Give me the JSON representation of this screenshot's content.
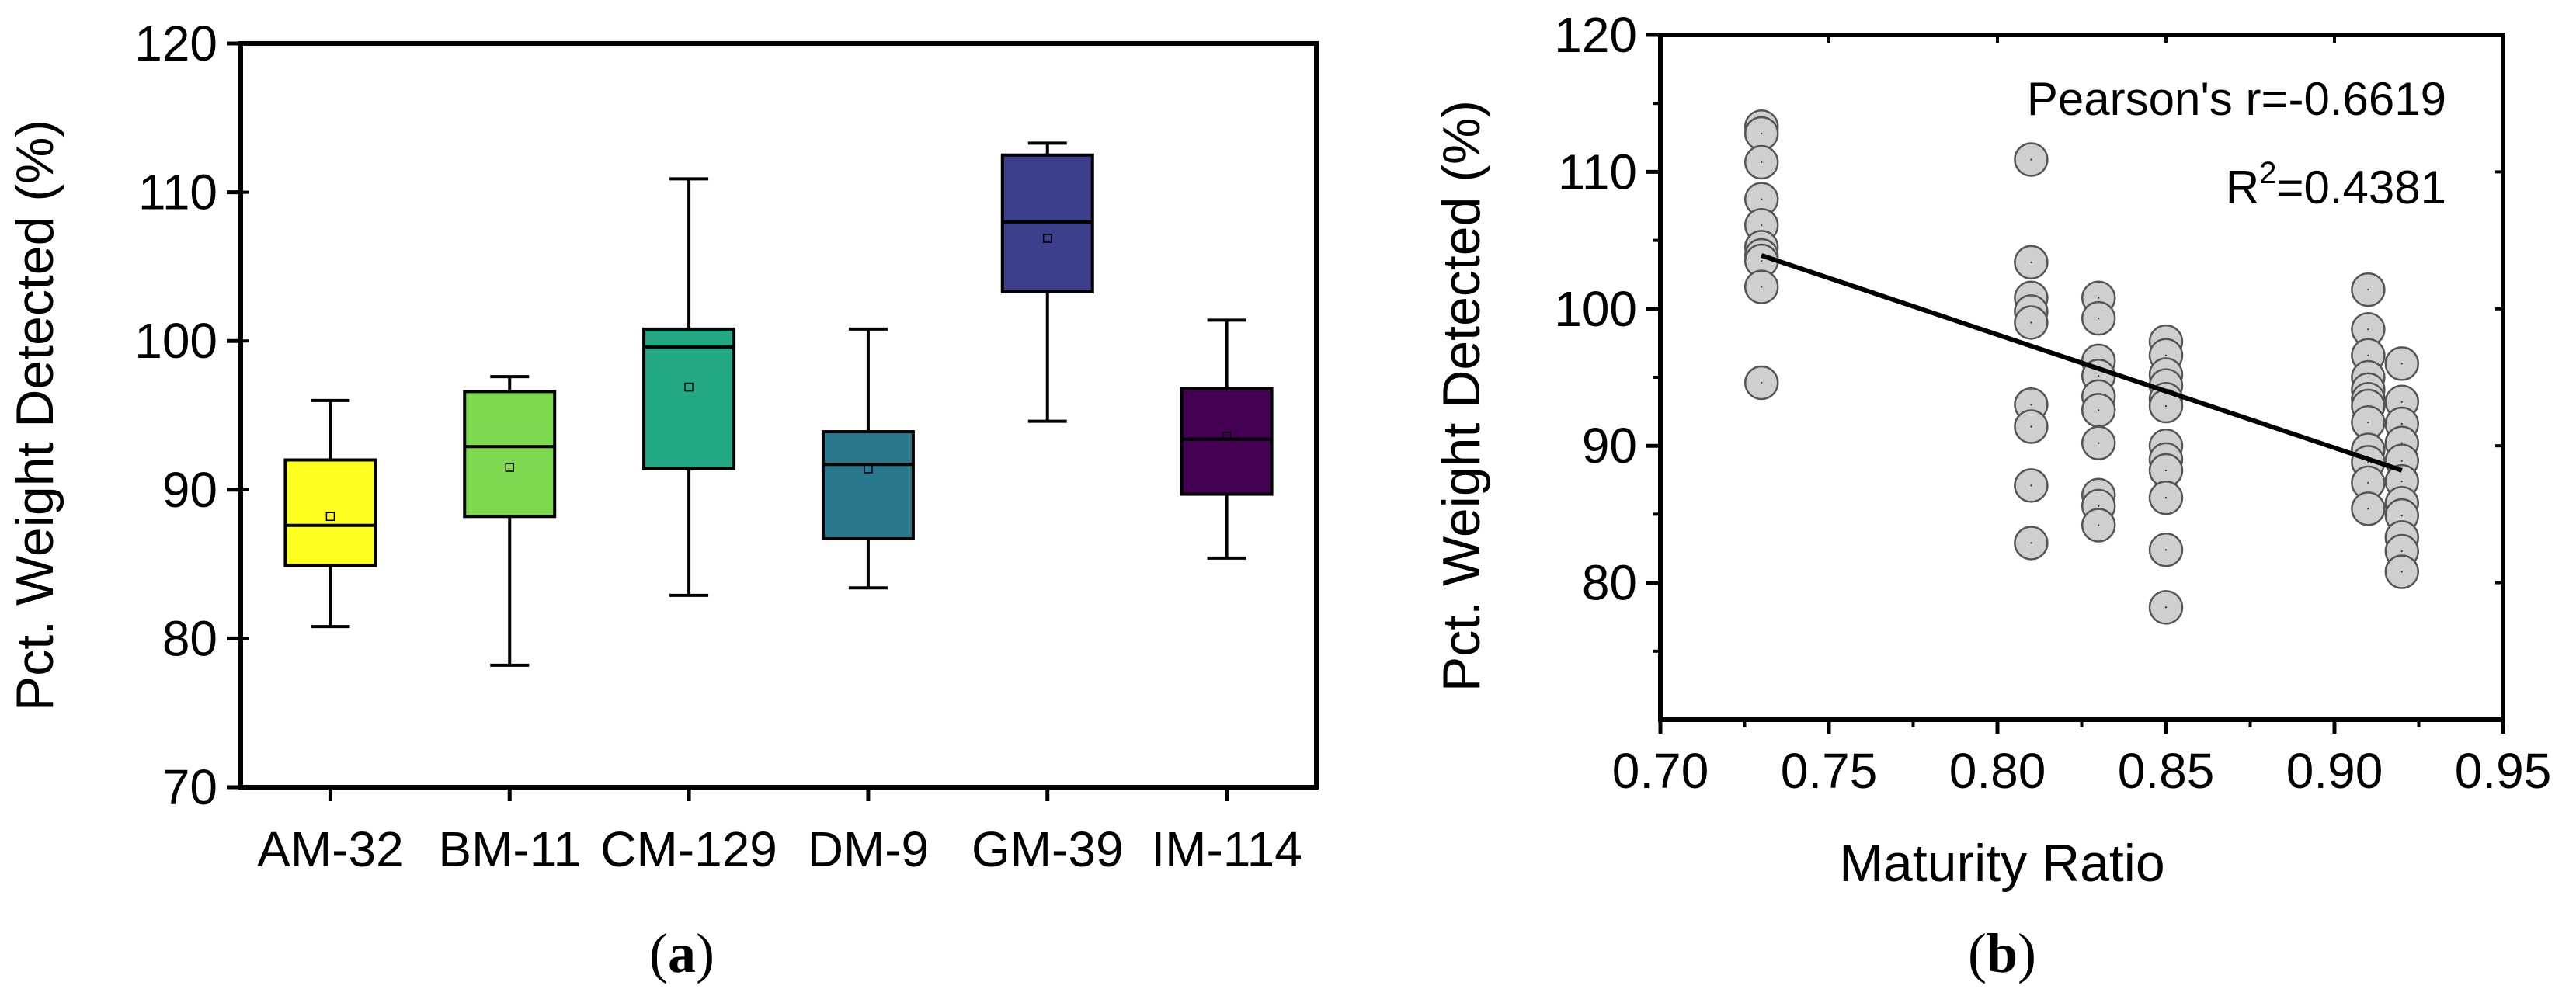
{
  "chart_data": [
    {
      "id": "a",
      "type": "box",
      "caption_open": "(",
      "caption_letter": "a",
      "caption_close": ")",
      "xlabel": "",
      "ylabel": "Pct. Weight Detected (%)",
      "ylim": [
        70,
        120
      ],
      "yticks": [
        70,
        80,
        90,
        100,
        110,
        120
      ],
      "categories": [
        "AM-32",
        "BM-11",
        "CM-129",
        "DM-9",
        "GM-39",
        "IM-114"
      ],
      "colors": [
        "#ffff1f",
        "#7ed94f",
        "#22a884",
        "#2a788e",
        "#3b3f8c",
        "#440154"
      ],
      "boxes": [
        {
          "min": 80.8,
          "q1": 84.9,
          "median": 87.6,
          "q3": 92.0,
          "max": 96.0,
          "mean": 88.2
        },
        {
          "min": 78.2,
          "q1": 88.2,
          "median": 92.9,
          "q3": 96.6,
          "max": 97.6,
          "mean": 91.5
        },
        {
          "min": 82.9,
          "q1": 91.4,
          "median": 99.6,
          "q3": 100.8,
          "max": 110.9,
          "mean": 96.9
        },
        {
          "min": 83.4,
          "q1": 86.7,
          "median": 91.7,
          "q3": 93.9,
          "max": 100.8,
          "mean": 91.4
        },
        {
          "min": 94.6,
          "q1": 103.3,
          "median": 108.0,
          "q3": 112.5,
          "max": 113.3,
          "mean": 106.9
        },
        {
          "min": 85.4,
          "q1": 89.7,
          "median": 93.4,
          "q3": 96.8,
          "max": 101.4,
          "mean": 93.6
        }
      ]
    },
    {
      "id": "b",
      "type": "scatter",
      "caption_open": "(",
      "caption_letter": "b",
      "caption_close": ")",
      "xlabel": "Maturity Ratio",
      "ylabel": "Pct. Weight Detected (%)",
      "xlim": [
        0.7,
        0.95
      ],
      "ylim": [
        70,
        120
      ],
      "xticks": [
        0.7,
        0.75,
        0.8,
        0.85,
        0.9,
        0.95
      ],
      "xtick_labels": [
        "0.70",
        "0.75",
        "0.80",
        "0.85",
        "0.90",
        "0.95"
      ],
      "yticks": [
        80,
        90,
        100,
        110,
        120
      ],
      "annotation_line1": "Pearson's r=-0.6619",
      "annotation_r2_prefix": "R",
      "annotation_r2_sup": "2",
      "annotation_r2_value": "=0.4381",
      "fit_line": {
        "x": [
          0.73,
          0.92
        ],
        "y": [
          103.9,
          88.2
        ]
      },
      "points": [
        {
          "x": 0.73,
          "y": 113.3
        },
        {
          "x": 0.73,
          "y": 112.8
        },
        {
          "x": 0.73,
          "y": 110.7
        },
        {
          "x": 0.73,
          "y": 108.0
        },
        {
          "x": 0.73,
          "y": 106.1
        },
        {
          "x": 0.73,
          "y": 104.5
        },
        {
          "x": 0.73,
          "y": 103.9
        },
        {
          "x": 0.73,
          "y": 103.5
        },
        {
          "x": 0.73,
          "y": 101.6
        },
        {
          "x": 0.73,
          "y": 94.6
        },
        {
          "x": 0.81,
          "y": 110.9
        },
        {
          "x": 0.81,
          "y": 103.4
        },
        {
          "x": 0.81,
          "y": 100.8
        },
        {
          "x": 0.81,
          "y": 99.8
        },
        {
          "x": 0.81,
          "y": 99.0
        },
        {
          "x": 0.81,
          "y": 93.0
        },
        {
          "x": 0.81,
          "y": 91.4
        },
        {
          "x": 0.81,
          "y": 87.1
        },
        {
          "x": 0.81,
          "y": 82.9
        },
        {
          "x": 0.83,
          "y": 100.8
        },
        {
          "x": 0.83,
          "y": 99.3
        },
        {
          "x": 0.83,
          "y": 96.2
        },
        {
          "x": 0.83,
          "y": 95.1
        },
        {
          "x": 0.83,
          "y": 93.6
        },
        {
          "x": 0.83,
          "y": 92.6
        },
        {
          "x": 0.83,
          "y": 90.2
        },
        {
          "x": 0.83,
          "y": 86.4
        },
        {
          "x": 0.83,
          "y": 85.6
        },
        {
          "x": 0.83,
          "y": 84.2
        },
        {
          "x": 0.85,
          "y": 97.6
        },
        {
          "x": 0.85,
          "y": 96.6
        },
        {
          "x": 0.85,
          "y": 95.2
        },
        {
          "x": 0.85,
          "y": 94.4
        },
        {
          "x": 0.85,
          "y": 93.4
        },
        {
          "x": 0.85,
          "y": 92.9
        },
        {
          "x": 0.85,
          "y": 90.0
        },
        {
          "x": 0.85,
          "y": 89.0
        },
        {
          "x": 0.85,
          "y": 88.2
        },
        {
          "x": 0.85,
          "y": 86.2
        },
        {
          "x": 0.85,
          "y": 82.4
        },
        {
          "x": 0.85,
          "y": 78.2
        },
        {
          "x": 0.91,
          "y": 101.4
        },
        {
          "x": 0.91,
          "y": 98.5
        },
        {
          "x": 0.91,
          "y": 96.6
        },
        {
          "x": 0.91,
          "y": 95.0
        },
        {
          "x": 0.91,
          "y": 94.1
        },
        {
          "x": 0.91,
          "y": 93.4
        },
        {
          "x": 0.91,
          "y": 92.9
        },
        {
          "x": 0.91,
          "y": 91.7
        },
        {
          "x": 0.91,
          "y": 89.7
        },
        {
          "x": 0.91,
          "y": 88.8
        },
        {
          "x": 0.91,
          "y": 87.3
        },
        {
          "x": 0.91,
          "y": 85.4
        },
        {
          "x": 0.92,
          "y": 96.0
        },
        {
          "x": 0.92,
          "y": 93.2
        },
        {
          "x": 0.92,
          "y": 91.6
        },
        {
          "x": 0.92,
          "y": 90.2
        },
        {
          "x": 0.92,
          "y": 88.9
        },
        {
          "x": 0.92,
          "y": 87.4
        },
        {
          "x": 0.92,
          "y": 85.8
        },
        {
          "x": 0.92,
          "y": 84.9
        },
        {
          "x": 0.92,
          "y": 83.3
        },
        {
          "x": 0.92,
          "y": 82.3
        },
        {
          "x": 0.92,
          "y": 80.8
        }
      ]
    }
  ]
}
